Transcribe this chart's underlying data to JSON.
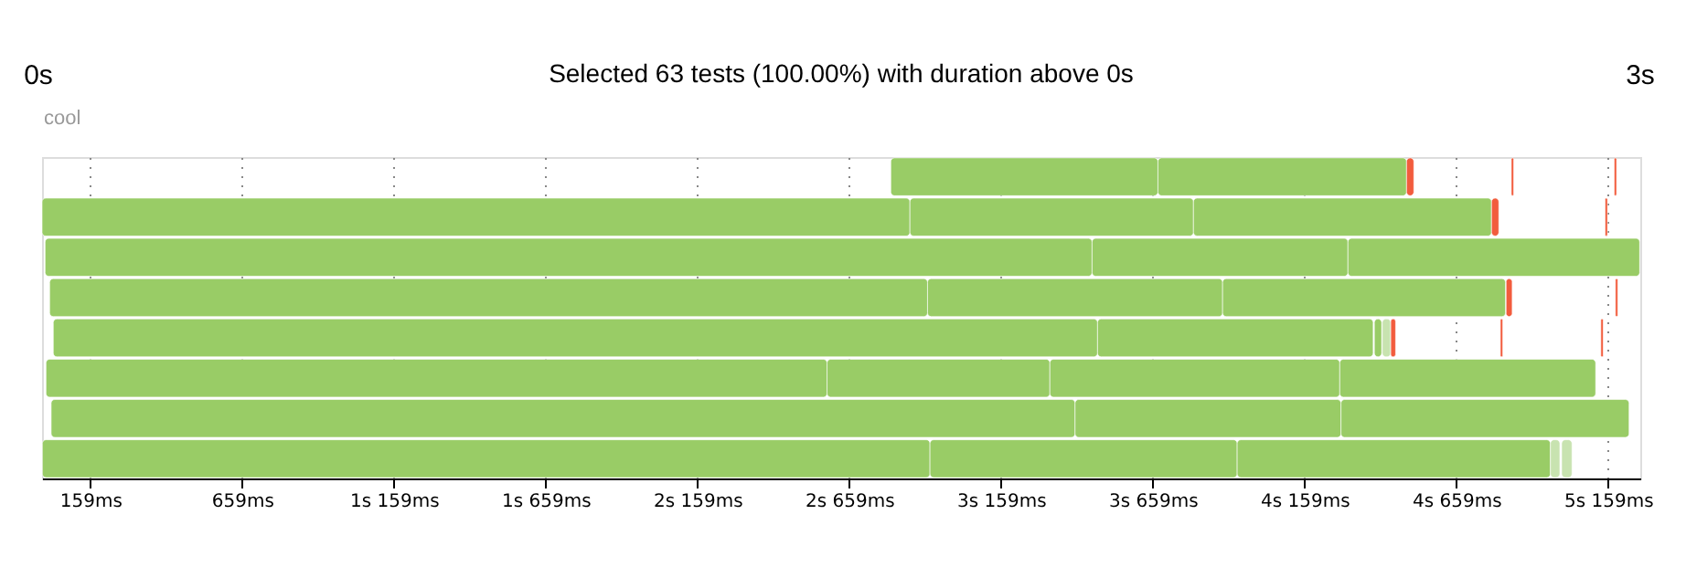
{
  "chart_data": {
    "type": "bar",
    "orientation": "horizontal",
    "title": "Selected 63 tests (100.00%) with duration above 0s",
    "annotations": [
      "0s",
      "3s",
      "cool"
    ],
    "categories": [
      null,
      null,
      null,
      null,
      null,
      null,
      null,
      null
    ],
    "xlim": [
      0,
      5265
    ],
    "xticks": [
      {
        "value": 159,
        "label": "159ms"
      },
      {
        "value": 659,
        "label": "659ms"
      },
      {
        "value": 1159,
        "label": "1s 159ms"
      },
      {
        "value": 1659,
        "label": "1s 659ms"
      },
      {
        "value": 2159,
        "label": "2s 159ms"
      },
      {
        "value": 2659,
        "label": "2s 659ms"
      },
      {
        "value": 3159,
        "label": "3s 159ms"
      },
      {
        "value": 3659,
        "label": "3s 659ms"
      },
      {
        "value": 4159,
        "label": "4s 159ms"
      },
      {
        "value": 4659,
        "label": "4s 659ms"
      },
      {
        "value": 5159,
        "label": "5s 159ms"
      }
    ],
    "grid": "x",
    "series": [
      {
        "base": [
          2796,
          0,
          10,
          25,
          37,
          13,
          30,
          1
        ],
        "values": [
          880,
          2859,
          3449,
          2892,
          3440,
          2573,
          3373,
          2924
        ],
        "colors": [
          "#99cc66",
          "#99cc66",
          "#99cc66",
          "#99cc66",
          "#99cc66",
          "#99cc66",
          "#99cc66",
          "#99cc66"
        ]
      },
      {
        "base": [
          3676,
          2859,
          3459,
          2917,
          3477,
          2586,
          3403,
          2925
        ],
        "values": [
          819,
          934,
          843,
          972,
          908,
          734,
          876,
          1012
        ],
        "colors": [
          "#99cc66",
          "#99cc66",
          "#99cc66",
          "#99cc66",
          "#99cc66",
          "#99cc66",
          "#99cc66",
          "#99cc66"
        ]
      },
      {
        "base": [
          4495,
          3793,
          4302,
          3889,
          4389,
          3320,
          4279,
          3937
        ],
        "values": [
          24,
          982,
          961,
          932,
          24,
          955,
          949,
          1032
        ],
        "colors": [
          "#f25c3d",
          "#99cc66",
          "#99cc66",
          "#99cc66",
          "#99cc66",
          "#99cc66",
          "#99cc66",
          "#99cc66"
        ]
      },
      {
        "base": [
          4840,
          4775,
          null,
          4823,
          4415,
          4275,
          null,
          4969
        ],
        "values": [
          8,
          24,
          null,
          20,
          28,
          843,
          null,
          31
        ],
        "colors": [
          "#f25c3d",
          "#f25c3d",
          null,
          "#f25c3d",
          "#c8e3b0",
          "#99cc66",
          null,
          "#c8e3b0"
        ]
      },
      {
        "base": [
          5179,
          5149,
          null,
          5183,
          4443,
          null,
          null,
          5006
        ],
        "values": [
          8,
          8,
          null,
          8,
          16,
          null,
          null,
          34
        ],
        "colors": [
          "#f25c3d",
          "#f25c3d",
          null,
          "#f25c3d",
          "#f25c3d",
          null,
          null,
          "#c8e3b0"
        ]
      },
      {
        "base": [
          null,
          null,
          null,
          null,
          4804,
          null,
          null,
          null
        ],
        "values": [
          null,
          null,
          null,
          null,
          8,
          null,
          null,
          null
        ],
        "colors": [
          null,
          null,
          null,
          null,
          "#f25c3d",
          null,
          null,
          null
        ]
      },
      {
        "base": [
          null,
          null,
          null,
          null,
          5135,
          null,
          null,
          null
        ],
        "values": [
          null,
          null,
          null,
          null,
          8,
          null,
          null,
          null
        ],
        "colors": [
          null,
          null,
          null,
          null,
          "#f25c3d",
          null,
          null,
          null
        ]
      }
    ]
  }
}
